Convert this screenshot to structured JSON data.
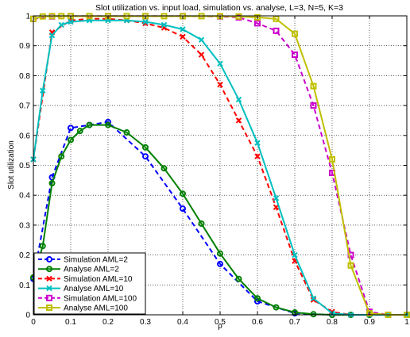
{
  "chart_data": {
    "type": "line",
    "title": "Slot utilization vs. input load, simulation vs. analyse, L=3, N=5, K=3",
    "xlabel": "ρ",
    "ylabel": "Slot utilization",
    "xlim": [
      0,
      1
    ],
    "ylim": [
      0,
      1
    ],
    "x_ticks": [
      0,
      0.1,
      0.2,
      0.3,
      0.4,
      0.5,
      0.6,
      0.7,
      0.8,
      0.9,
      1
    ],
    "x_tick_labels": [
      "0",
      "0.1",
      "0.2",
      "0.3",
      "0.4",
      "0.5",
      "0.6",
      "0.7",
      "0.8",
      "0.9",
      "1"
    ],
    "y_ticks": [
      0,
      0.1,
      0.2,
      0.3,
      0.4,
      0.5,
      0.6,
      0.7,
      0.8,
      0.9,
      1
    ],
    "y_tick_labels": [
      "0",
      "0.1",
      "0.2",
      "0.3",
      "0.4",
      "0.5",
      "0.6",
      "0.7",
      "0.8",
      "0.9",
      "1"
    ],
    "grid": true,
    "legend_position": "bottom-left",
    "series": [
      {
        "name": "Simulation AML=2",
        "color": "#0000ff",
        "dash": true,
        "marker": "circle",
        "x": [
          0,
          0.05,
          0.1,
          0.15,
          0.2,
          0.3,
          0.4,
          0.5,
          0.6,
          0.7,
          0.8,
          0.9,
          1
        ],
        "y": [
          0.12,
          0.46,
          0.625,
          0.635,
          0.645,
          0.53,
          0.355,
          0.17,
          0.045,
          0.005,
          0.0,
          0.0,
          0.0
        ]
      },
      {
        "name": "Analyse AML=2",
        "color": "#008000",
        "dash": false,
        "marker": "circle",
        "x": [
          0,
          0.025,
          0.05,
          0.075,
          0.1,
          0.125,
          0.15,
          0.2,
          0.25,
          0.3,
          0.35,
          0.4,
          0.45,
          0.5,
          0.55,
          0.6,
          0.65,
          0.7,
          0.75,
          0.8,
          0.85,
          0.9,
          0.95,
          1
        ],
        "y": [
          0.125,
          0.23,
          0.44,
          0.53,
          0.585,
          0.615,
          0.635,
          0.635,
          0.61,
          0.56,
          0.49,
          0.405,
          0.305,
          0.205,
          0.12,
          0.055,
          0.025,
          0.008,
          0.002,
          0.0,
          0.0,
          0.0,
          0.0,
          0.0
        ]
      },
      {
        "name": "Simulation AML=10",
        "color": "#ff0000",
        "dash": true,
        "marker": "x",
        "x": [
          0,
          0.05,
          0.1,
          0.15,
          0.2,
          0.25,
          0.3,
          0.35,
          0.4,
          0.45,
          0.5,
          0.55,
          0.6,
          0.65,
          0.7,
          0.75,
          0.8,
          0.85,
          0.9,
          0.95,
          1
        ],
        "y": [
          0.52,
          0.945,
          0.985,
          0.99,
          0.99,
          0.985,
          0.975,
          0.96,
          0.93,
          0.87,
          0.77,
          0.65,
          0.53,
          0.36,
          0.18,
          0.05,
          0.01,
          0.0,
          0.0,
          0.0,
          0.0
        ]
      },
      {
        "name": "Analyse AML=10",
        "color": "#00bfbf",
        "dash": false,
        "marker": "x",
        "x": [
          0,
          0.025,
          0.05,
          0.075,
          0.1,
          0.15,
          0.2,
          0.25,
          0.3,
          0.35,
          0.4,
          0.45,
          0.5,
          0.55,
          0.6,
          0.65,
          0.7,
          0.75,
          0.8,
          0.85,
          0.9,
          0.95,
          1
        ],
        "y": [
          0.52,
          0.75,
          0.935,
          0.97,
          0.98,
          0.985,
          0.985,
          0.985,
          0.98,
          0.97,
          0.955,
          0.92,
          0.84,
          0.72,
          0.575,
          0.39,
          0.2,
          0.055,
          0.005,
          0.0,
          0.0,
          0.0,
          0.0
        ]
      },
      {
        "name": "Simulation AML=100",
        "color": "#cc00cc",
        "dash": true,
        "marker": "square",
        "x": [
          0,
          0.05,
          0.1,
          0.2,
          0.3,
          0.4,
          0.5,
          0.55,
          0.6,
          0.65,
          0.7,
          0.75,
          0.8,
          0.85,
          0.9,
          0.95,
          1
        ],
        "y": [
          0.99,
          0.998,
          0.999,
          0.999,
          0.999,
          0.999,
          0.998,
          0.995,
          0.975,
          0.95,
          0.87,
          0.7,
          0.475,
          0.2,
          0.01,
          0.0,
          0.0
        ]
      },
      {
        "name": "Analyse AML=100",
        "color": "#bfbf00",
        "dash": false,
        "marker": "square",
        "x": [
          0,
          0.025,
          0.05,
          0.075,
          0.1,
          0.15,
          0.2,
          0.25,
          0.3,
          0.35,
          0.4,
          0.45,
          0.5,
          0.55,
          0.6,
          0.65,
          0.7,
          0.75,
          0.8,
          0.85,
          0.9,
          0.95,
          1
        ],
        "y": [
          0.99,
          0.998,
          0.999,
          0.999,
          0.999,
          0.999,
          0.999,
          0.999,
          0.999,
          0.999,
          0.999,
          0.999,
          0.999,
          0.998,
          0.995,
          0.99,
          0.94,
          0.765,
          0.52,
          0.165,
          0.005,
          0.0,
          0.0
        ]
      }
    ]
  }
}
